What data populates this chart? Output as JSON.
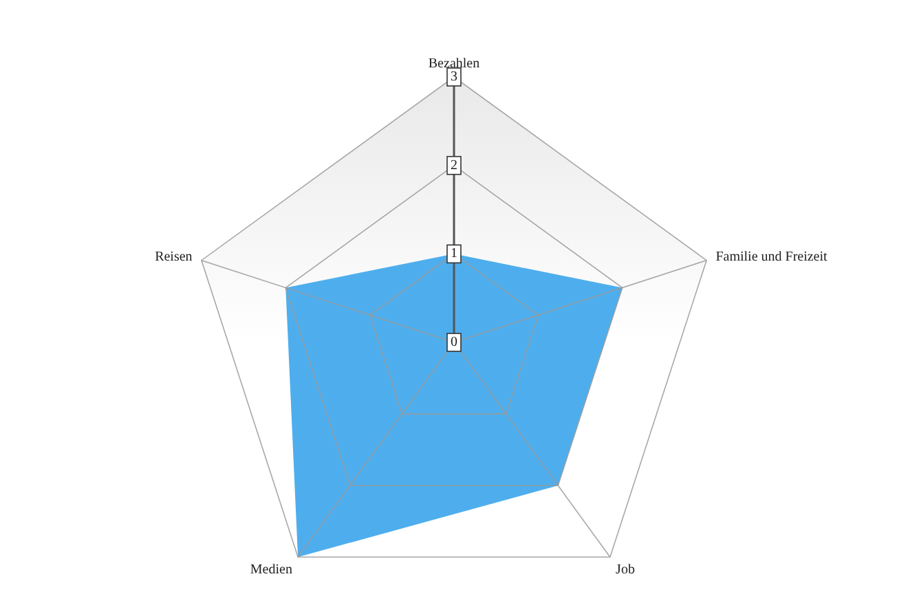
{
  "chart_data": {
    "type": "radar",
    "categories": [
      "Bezahlen",
      "Familie und Freizeit",
      "Job",
      "Medien",
      "Reisen"
    ],
    "series": [
      {
        "color": "#4eaeed",
        "values": [
          1,
          2,
          2,
          3,
          2
        ]
      }
    ],
    "ylim": [
      0,
      3
    ],
    "yticks": [
      0,
      1,
      2,
      3
    ],
    "grid": true
  }
}
